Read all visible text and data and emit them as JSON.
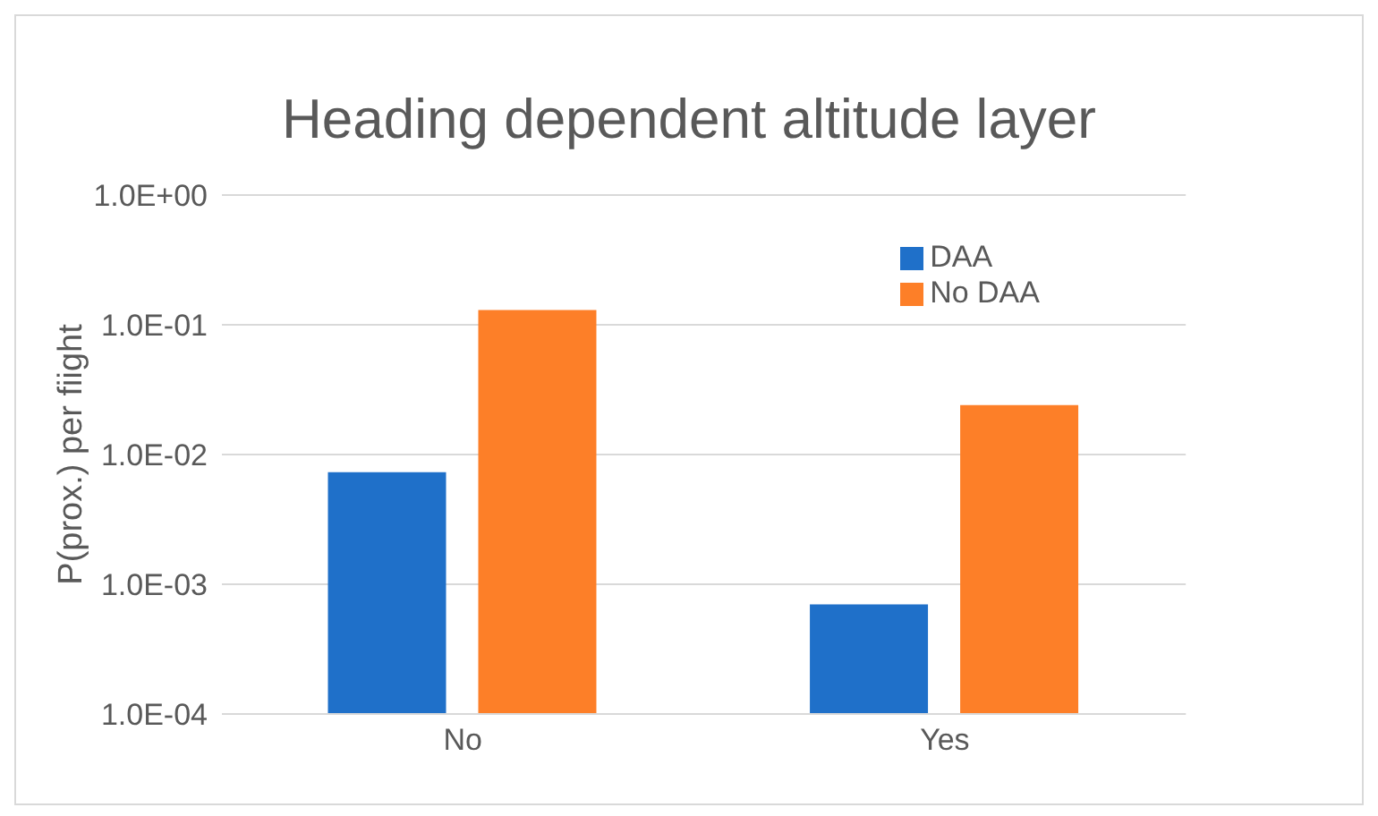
{
  "chart_data": {
    "type": "bar",
    "title": "Heading dependent altitude layer",
    "ylabel": "P(prox.) per fiight",
    "categories": [
      "No",
      "Yes"
    ],
    "series": [
      {
        "name": "DAA",
        "color": "#1f70c9",
        "values": [
          0.0073,
          0.0007
        ]
      },
      {
        "name": "No DAA",
        "color": "#fd7f28",
        "values": [
          0.13,
          0.024
        ]
      }
    ],
    "log": true,
    "ylim": [
      0.0001,
      1
    ],
    "yticks": [
      {
        "value": 0.0001,
        "label": "1.0E-04"
      },
      {
        "value": 0.001,
        "label": "1.0E-03"
      },
      {
        "value": 0.01,
        "label": "1.0E-02"
      },
      {
        "value": 0.1,
        "label": "1.0E-01"
      },
      {
        "value": 1,
        "label": "1.0E+00"
      }
    ],
    "grid": "y",
    "legend": "top right"
  }
}
